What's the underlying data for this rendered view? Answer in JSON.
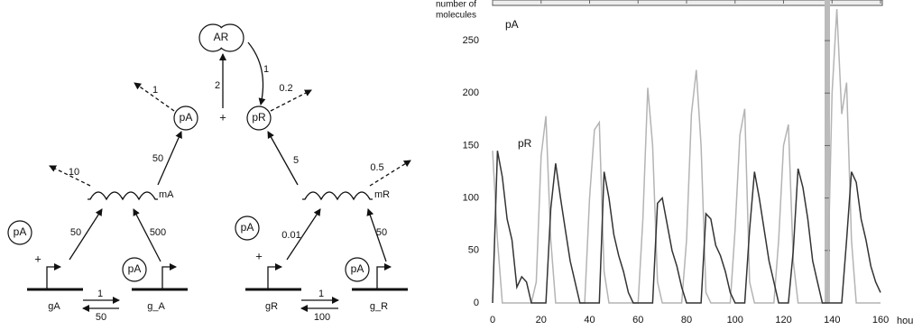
{
  "diagram": {
    "complex": "AR",
    "proteins": [
      "pA",
      "pR"
    ],
    "mrnas": [
      "mA",
      "mR"
    ],
    "genes": [
      "gA",
      "g_A",
      "gR",
      "g_R"
    ],
    "free_activators": [
      "pA",
      "pA"
    ],
    "bound_activators": [
      "pA",
      "pA"
    ],
    "plus": [
      "+",
      "+",
      "+"
    ],
    "rates": [
      2,
      1,
      0.2,
      1,
      50,
      5,
      10,
      0.5,
      50,
      500,
      0.01,
      50,
      1,
      50,
      1,
      100
    ]
  },
  "chart_data": {
    "type": "line",
    "y_label_lines": [
      "number of",
      "molecules"
    ],
    "x_label": "hours",
    "x": [
      0,
      2,
      4,
      6,
      8,
      10,
      12,
      14,
      16,
      18,
      20,
      22,
      24,
      26,
      28,
      30,
      32,
      34,
      36,
      38,
      40,
      42,
      44,
      46,
      48,
      50,
      52,
      54,
      56,
      58,
      60,
      62,
      64,
      66,
      68,
      70,
      72,
      74,
      76,
      78,
      80,
      82,
      84,
      86,
      88,
      90,
      92,
      94,
      96,
      98,
      100,
      102,
      104,
      106,
      108,
      110,
      112,
      114,
      116,
      118,
      120,
      122,
      124,
      126,
      128,
      130,
      132,
      134,
      136,
      138,
      140,
      142,
      144,
      146,
      148,
      150,
      152,
      154,
      156,
      158,
      160
    ],
    "series": [
      {
        "name": "pA",
        "color": "#b4b4b4",
        "values": [
          145,
          60,
          0,
          0,
          0,
          0,
          0,
          0,
          0,
          20,
          140,
          178,
          60,
          0,
          0,
          0,
          0,
          0,
          0,
          0,
          100,
          165,
          172,
          30,
          0,
          0,
          0,
          0,
          0,
          0,
          0,
          80,
          205,
          150,
          20,
          0,
          0,
          0,
          0,
          0,
          60,
          180,
          222,
          150,
          10,
          0,
          0,
          0,
          0,
          0,
          70,
          160,
          185,
          20,
          0,
          0,
          0,
          0,
          0,
          60,
          150,
          170,
          40,
          0,
          0,
          0,
          0,
          0,
          0,
          0,
          200,
          280,
          180,
          210,
          60,
          0,
          0,
          0,
          0,
          0,
          0
        ]
      },
      {
        "name": "pR",
        "color": "#333333",
        "values": [
          0,
          145,
          120,
          80,
          60,
          15,
          25,
          20,
          0,
          0,
          0,
          0,
          90,
          133,
          100,
          70,
          40,
          20,
          0,
          0,
          0,
          0,
          0,
          125,
          100,
          65,
          45,
          30,
          10,
          0,
          0,
          0,
          0,
          0,
          95,
          100,
          75,
          50,
          35,
          15,
          0,
          0,
          0,
          0,
          85,
          80,
          55,
          45,
          30,
          10,
          0,
          0,
          0,
          70,
          125,
          100,
          70,
          40,
          20,
          0,
          0,
          0,
          50,
          128,
          110,
          80,
          40,
          20,
          0,
          0,
          0,
          0,
          0,
          60,
          125,
          115,
          80,
          60,
          35,
          20,
          10
        ]
      }
    ],
    "xlim": [
      0,
      161
    ],
    "ylim": [
      0,
      285
    ],
    "xticks": [
      0,
      20,
      40,
      60,
      80,
      100,
      120,
      140,
      160
    ],
    "yticks": [
      0,
      50,
      100,
      150,
      200,
      250
    ]
  }
}
